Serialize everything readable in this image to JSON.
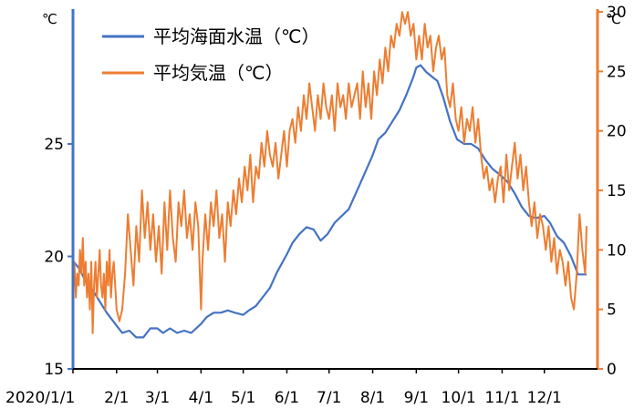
{
  "chart_data": {
    "type": "line",
    "title": "",
    "y_left": {
      "unit": "℃",
      "range": [
        15,
        31.4
      ],
      "ticks": [
        15,
        20,
        25
      ]
    },
    "y_right": {
      "unit": "℃",
      "range": [
        0,
        31
      ],
      "ticks": [
        0,
        5,
        10,
        15,
        20,
        25,
        30
      ]
    },
    "x_ticks": [
      "2020/1/1",
      "2/1",
      "3/1",
      "4/1",
      "5/1",
      "6/1",
      "7/1",
      "8/1",
      "9/1",
      "10/1",
      "11/1",
      "12/1"
    ],
    "legend": {
      "placement": "top-left"
    },
    "series": [
      {
        "name": "平均海面水温（℃）",
        "axis": "left",
        "color": "#4472c4",
        "points": [
          [
            "2020-01-01",
            19.8
          ],
          [
            "2020-01-05",
            19.5
          ],
          [
            "2020-01-10",
            18.9
          ],
          [
            "2020-01-15",
            18.5
          ],
          [
            "2020-01-20",
            18.0
          ],
          [
            "2020-01-25",
            17.5
          ],
          [
            "2020-01-31",
            17.0
          ],
          [
            "2020-02-05",
            16.6
          ],
          [
            "2020-02-10",
            16.7
          ],
          [
            "2020-02-15",
            16.4
          ],
          [
            "2020-02-20",
            16.4
          ],
          [
            "2020-02-25",
            16.8
          ],
          [
            "2020-03-01",
            16.8
          ],
          [
            "2020-03-05",
            16.6
          ],
          [
            "2020-03-10",
            16.8
          ],
          [
            "2020-03-15",
            16.6
          ],
          [
            "2020-03-20",
            16.7
          ],
          [
            "2020-03-25",
            16.6
          ],
          [
            "2020-04-01",
            17.0
          ],
          [
            "2020-04-05",
            17.3
          ],
          [
            "2020-04-10",
            17.5
          ],
          [
            "2020-04-15",
            17.5
          ],
          [
            "2020-04-20",
            17.6
          ],
          [
            "2020-04-25",
            17.5
          ],
          [
            "2020-05-01",
            17.4
          ],
          [
            "2020-05-05",
            17.6
          ],
          [
            "2020-05-10",
            17.8
          ],
          [
            "2020-05-15",
            18.2
          ],
          [
            "2020-05-20",
            18.6
          ],
          [
            "2020-05-25",
            19.3
          ],
          [
            "2020-06-01",
            20.1
          ],
          [
            "2020-06-05",
            20.6
          ],
          [
            "2020-06-10",
            21.0
          ],
          [
            "2020-06-15",
            21.3
          ],
          [
            "2020-06-20",
            21.2
          ],
          [
            "2020-06-25",
            20.7
          ],
          [
            "2020-06-30",
            21.0
          ],
          [
            "2020-07-05",
            21.5
          ],
          [
            "2020-07-10",
            21.8
          ],
          [
            "2020-07-15",
            22.1
          ],
          [
            "2020-07-20",
            22.8
          ],
          [
            "2020-07-25",
            23.5
          ],
          [
            "2020-08-01",
            24.5
          ],
          [
            "2020-08-05",
            25.2
          ],
          [
            "2020-08-10",
            25.5
          ],
          [
            "2020-08-15",
            26.0
          ],
          [
            "2020-08-20",
            26.5
          ],
          [
            "2020-08-25",
            27.2
          ],
          [
            "2020-08-30",
            28.0
          ],
          [
            "2020-09-01",
            28.4
          ],
          [
            "2020-09-04",
            28.5
          ],
          [
            "2020-09-08",
            28.2
          ],
          [
            "2020-09-12",
            28.0
          ],
          [
            "2020-09-16",
            27.8
          ],
          [
            "2020-09-20",
            27.1
          ],
          [
            "2020-09-25",
            26.0
          ],
          [
            "2020-09-30",
            25.2
          ],
          [
            "2020-10-05",
            25.0
          ],
          [
            "2020-10-10",
            25.0
          ],
          [
            "2020-10-15",
            24.8
          ],
          [
            "2020-10-20",
            24.3
          ],
          [
            "2020-10-25",
            23.9
          ],
          [
            "2020-10-31",
            23.6
          ],
          [
            "2020-11-05",
            23.3
          ],
          [
            "2020-11-10",
            22.8
          ],
          [
            "2020-11-15",
            22.2
          ],
          [
            "2020-11-20",
            21.8
          ],
          [
            "2020-11-25",
            21.7
          ],
          [
            "2020-12-01",
            21.8
          ],
          [
            "2020-12-05",
            21.5
          ],
          [
            "2020-12-10",
            20.9
          ],
          [
            "2020-12-15",
            20.6
          ],
          [
            "2020-12-20",
            20.0
          ],
          [
            "2020-12-25",
            19.2
          ],
          [
            "2020-12-31",
            19.2
          ]
        ]
      },
      {
        "name": "平均気温（℃）",
        "axis": "right",
        "color": "#ed7d31",
        "points": [
          [
            "2020-01-01",
            7
          ],
          [
            "2020-01-02",
            9
          ],
          [
            "2020-01-03",
            6
          ],
          [
            "2020-01-04",
            8
          ],
          [
            "2020-01-05",
            7
          ],
          [
            "2020-01-06",
            10
          ],
          [
            "2020-01-07",
            8
          ],
          [
            "2020-01-08",
            11
          ],
          [
            "2020-01-09",
            7
          ],
          [
            "2020-01-10",
            9
          ],
          [
            "2020-01-11",
            6
          ],
          [
            "2020-01-12",
            8
          ],
          [
            "2020-01-13",
            5
          ],
          [
            "2020-01-14",
            9
          ],
          [
            "2020-01-15",
            3
          ],
          [
            "2020-01-16",
            7
          ],
          [
            "2020-01-17",
            9
          ],
          [
            "2020-01-18",
            6
          ],
          [
            "2020-01-19",
            8
          ],
          [
            "2020-01-20",
            10
          ],
          [
            "2020-01-21",
            7
          ],
          [
            "2020-01-22",
            6
          ],
          [
            "2020-01-23",
            8
          ],
          [
            "2020-01-24",
            5
          ],
          [
            "2020-01-25",
            9
          ],
          [
            "2020-01-26",
            7
          ],
          [
            "2020-01-27",
            10
          ],
          [
            "2020-01-28",
            6
          ],
          [
            "2020-01-29",
            8
          ],
          [
            "2020-01-30",
            9
          ],
          [
            "2020-01-31",
            7
          ],
          [
            "2020-02-01",
            5
          ],
          [
            "2020-02-03",
            4
          ],
          [
            "2020-02-05",
            5
          ],
          [
            "2020-02-07",
            8
          ],
          [
            "2020-02-09",
            13
          ],
          [
            "2020-02-11",
            10
          ],
          [
            "2020-02-13",
            7
          ],
          [
            "2020-02-15",
            12
          ],
          [
            "2020-02-17",
            9
          ],
          [
            "2020-02-19",
            15
          ],
          [
            "2020-02-21",
            11
          ],
          [
            "2020-02-23",
            14
          ],
          [
            "2020-02-25",
            10
          ],
          [
            "2020-02-27",
            13
          ],
          [
            "2020-02-29",
            9
          ],
          [
            "2020-03-02",
            12
          ],
          [
            "2020-03-04",
            8
          ],
          [
            "2020-03-06",
            14
          ],
          [
            "2020-03-08",
            10
          ],
          [
            "2020-03-10",
            15
          ],
          [
            "2020-03-12",
            11
          ],
          [
            "2020-03-14",
            9
          ],
          [
            "2020-03-16",
            14
          ],
          [
            "2020-03-18",
            12
          ],
          [
            "2020-03-20",
            15
          ],
          [
            "2020-03-22",
            11
          ],
          [
            "2020-03-24",
            13
          ],
          [
            "2020-03-26",
            10
          ],
          [
            "2020-03-28",
            14
          ],
          [
            "2020-03-30",
            12
          ],
          [
            "2020-04-01",
            5
          ],
          [
            "2020-04-02",
            9
          ],
          [
            "2020-04-04",
            13
          ],
          [
            "2020-04-06",
            10
          ],
          [
            "2020-04-08",
            14
          ],
          [
            "2020-04-10",
            12
          ],
          [
            "2020-04-12",
            15
          ],
          [
            "2020-04-14",
            11
          ],
          [
            "2020-04-16",
            13
          ],
          [
            "2020-04-18",
            9
          ],
          [
            "2020-04-20",
            14
          ],
          [
            "2020-04-22",
            12
          ],
          [
            "2020-04-24",
            15
          ],
          [
            "2020-04-26",
            13
          ],
          [
            "2020-04-28",
            16
          ],
          [
            "2020-04-30",
            14
          ],
          [
            "2020-05-02",
            17
          ],
          [
            "2020-05-04",
            15
          ],
          [
            "2020-05-06",
            18
          ],
          [
            "2020-05-08",
            14
          ],
          [
            "2020-05-10",
            17
          ],
          [
            "2020-05-12",
            16
          ],
          [
            "2020-05-14",
            19
          ],
          [
            "2020-05-16",
            17
          ],
          [
            "2020-05-18",
            20
          ],
          [
            "2020-05-20",
            18
          ],
          [
            "2020-05-22",
            17
          ],
          [
            "2020-05-24",
            19
          ],
          [
            "2020-05-26",
            16
          ],
          [
            "2020-05-28",
            18
          ],
          [
            "2020-05-30",
            20
          ],
          [
            "2020-06-01",
            17
          ],
          [
            "2020-06-03",
            20
          ],
          [
            "2020-06-05",
            21
          ],
          [
            "2020-06-07",
            19
          ],
          [
            "2020-06-09",
            22
          ],
          [
            "2020-06-11",
            20
          ],
          [
            "2020-06-13",
            23
          ],
          [
            "2020-06-15",
            21
          ],
          [
            "2020-06-17",
            24
          ],
          [
            "2020-06-19",
            22
          ],
          [
            "2020-06-21",
            20
          ],
          [
            "2020-06-23",
            23
          ],
          [
            "2020-06-25",
            21
          ],
          [
            "2020-06-27",
            24
          ],
          [
            "2020-06-29",
            22
          ],
          [
            "2020-07-01",
            21
          ],
          [
            "2020-07-03",
            23
          ],
          [
            "2020-07-05",
            20
          ],
          [
            "2020-07-07",
            24
          ],
          [
            "2020-07-09",
            22
          ],
          [
            "2020-07-11",
            23
          ],
          [
            "2020-07-13",
            21
          ],
          [
            "2020-07-15",
            24
          ],
          [
            "2020-07-17",
            22
          ],
          [
            "2020-07-19",
            23
          ],
          [
            "2020-07-21",
            24
          ],
          [
            "2020-07-23",
            21
          ],
          [
            "2020-07-25",
            25
          ],
          [
            "2020-07-27",
            22
          ],
          [
            "2020-07-29",
            24
          ],
          [
            "2020-07-31",
            21
          ],
          [
            "2020-08-02",
            25
          ],
          [
            "2020-08-04",
            23
          ],
          [
            "2020-08-06",
            26
          ],
          [
            "2020-08-08",
            24
          ],
          [
            "2020-08-10",
            27
          ],
          [
            "2020-08-12",
            25
          ],
          [
            "2020-08-14",
            28
          ],
          [
            "2020-08-16",
            27
          ],
          [
            "2020-08-18",
            29
          ],
          [
            "2020-08-20",
            28
          ],
          [
            "2020-08-22",
            30
          ],
          [
            "2020-08-24",
            29
          ],
          [
            "2020-08-26",
            30
          ],
          [
            "2020-08-28",
            28
          ],
          [
            "2020-08-30",
            29
          ],
          [
            "2020-09-01",
            26
          ],
          [
            "2020-09-03",
            28
          ],
          [
            "2020-09-05",
            26
          ],
          [
            "2020-09-07",
            29
          ],
          [
            "2020-09-09",
            27
          ],
          [
            "2020-09-11",
            28
          ],
          [
            "2020-09-13",
            25
          ],
          [
            "2020-09-15",
            27
          ],
          [
            "2020-09-17",
            28
          ],
          [
            "2020-09-19",
            26
          ],
          [
            "2020-09-21",
            27
          ],
          [
            "2020-09-23",
            23
          ],
          [
            "2020-09-25",
            22
          ],
          [
            "2020-09-27",
            24
          ],
          [
            "2020-09-29",
            21
          ],
          [
            "2020-10-01",
            20
          ],
          [
            "2020-10-03",
            22
          ],
          [
            "2020-10-05",
            19
          ],
          [
            "2020-10-07",
            21
          ],
          [
            "2020-10-09",
            20
          ],
          [
            "2020-10-11",
            22
          ],
          [
            "2020-10-13",
            19
          ],
          [
            "2020-10-15",
            21
          ],
          [
            "2020-10-17",
            18
          ],
          [
            "2020-10-19",
            16
          ],
          [
            "2020-10-21",
            17
          ],
          [
            "2020-10-23",
            15
          ],
          [
            "2020-10-25",
            16
          ],
          [
            "2020-10-27",
            14
          ],
          [
            "2020-10-29",
            16
          ],
          [
            "2020-10-31",
            17
          ],
          [
            "2020-11-02",
            14
          ],
          [
            "2020-11-04",
            18
          ],
          [
            "2020-11-06",
            15
          ],
          [
            "2020-11-08",
            17
          ],
          [
            "2020-11-10",
            19
          ],
          [
            "2020-11-12",
            16
          ],
          [
            "2020-11-14",
            18
          ],
          [
            "2020-11-16",
            15
          ],
          [
            "2020-11-18",
            17
          ],
          [
            "2020-11-20",
            14
          ],
          [
            "2020-11-22",
            12
          ],
          [
            "2020-11-24",
            14
          ],
          [
            "2020-11-26",
            11
          ],
          [
            "2020-11-28",
            13
          ],
          [
            "2020-11-30",
            12
          ],
          [
            "2020-12-02",
            10
          ],
          [
            "2020-12-04",
            12
          ],
          [
            "2020-12-06",
            9
          ],
          [
            "2020-12-08",
            11
          ],
          [
            "2020-12-10",
            8
          ],
          [
            "2020-12-12",
            10
          ],
          [
            "2020-12-14",
            9
          ],
          [
            "2020-12-16",
            7
          ],
          [
            "2020-12-18",
            9
          ],
          [
            "2020-12-20",
            6
          ],
          [
            "2020-12-22",
            5
          ],
          [
            "2020-12-24",
            8
          ],
          [
            "2020-12-26",
            13
          ],
          [
            "2020-12-28",
            10
          ],
          [
            "2020-12-30",
            8
          ],
          [
            "2020-12-31",
            12
          ]
        ]
      }
    ]
  }
}
